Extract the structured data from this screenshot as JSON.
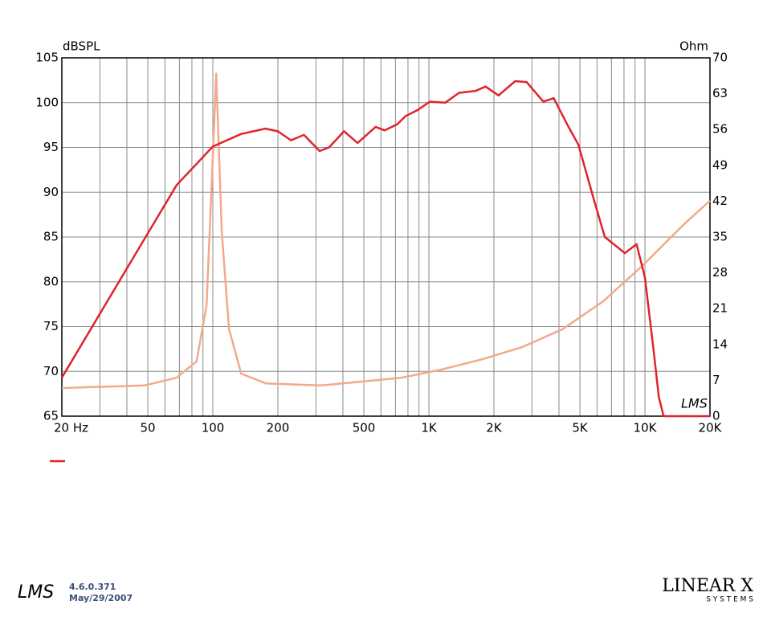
{
  "chart_data": {
    "type": "line",
    "xscale": "log",
    "ylabel": "dBSPL",
    "y2label": "Ohm",
    "watermark": "LMS",
    "grid": true,
    "xlim": [
      20,
      20000
    ],
    "xticks": [
      {
        "value": 20,
        "label": "20  Hz"
      },
      50,
      100,
      200,
      500,
      {
        "value": 1000,
        "label": "1K"
      },
      {
        "value": 2000,
        "label": "2K"
      },
      {
        "value": 5000,
        "label": "5K"
      },
      {
        "value": 10000,
        "label": "10K"
      },
      {
        "value": 20000,
        "label": "20K"
      }
    ],
    "xminor": [
      30,
      40,
      60,
      70,
      80,
      90,
      300,
      400,
      600,
      700,
      800,
      900,
      3000,
      4000,
      6000,
      7000,
      8000,
      9000
    ],
    "ylim": [
      65,
      105
    ],
    "yticks": [
      65,
      70,
      75,
      80,
      85,
      90,
      95,
      100,
      105
    ],
    "y2lim": [
      0,
      70
    ],
    "y2ticks": [
      0,
      7,
      14,
      21,
      28,
      35,
      42,
      49,
      56,
      63,
      70
    ],
    "series": [
      {
        "color": "#e0242b",
        "x": [
          20,
          50,
          68,
          100,
          135,
          175,
          200,
          230,
          264,
          312,
          345,
          405,
          468,
          567,
          625,
          715,
          780,
          890,
          1010,
          1190,
          1380,
          1640,
          1830,
          2100,
          2510,
          2830,
          3390,
          3780,
          4430,
          4920,
          5830,
          6520,
          8070,
          9150,
          10000,
          10900,
          11600,
          12200,
          20000
        ],
        "values": [
          69.3,
          85.4,
          90.8,
          95.1,
          96.5,
          97.1,
          96.8,
          95.8,
          96.4,
          94.6,
          95.0,
          96.8,
          95.5,
          97.3,
          96.9,
          97.6,
          98.5,
          99.2,
          100.1,
          100.0,
          101.1,
          101.3,
          101.8,
          100.8,
          102.4,
          102.3,
          100.1,
          100.5,
          97.3,
          95.3,
          89.0,
          85.0,
          83.2,
          84.2,
          80.5,
          72.9,
          67.1,
          65,
          65
        ]
      },
      {
        "color": "#f2a98c",
        "axis": "y2",
        "x": [
          20,
          48.2,
          67.9,
          84.1,
          93.5,
          99.8,
          103.6,
          110,
          118.9,
          135.2,
          175.7,
          318,
          745,
          1143,
          1760,
          2705,
          4160,
          6390,
          9800,
          15080,
          20000
        ],
        "values": [
          5.5,
          6.0,
          7.5,
          10.7,
          21.7,
          49.9,
          66.9,
          35.8,
          17.0,
          8.3,
          6.4,
          6.0,
          7.5,
          9.1,
          11.1,
          13.5,
          17.0,
          22.4,
          29.5,
          37.4,
          42.1
        ]
      }
    ]
  },
  "footer": {
    "logo": "LMS",
    "version": "4.6.0.371",
    "date": "May/29/2007",
    "brand": "LINEAR X",
    "brand_sub": "S Y S T E M S"
  }
}
